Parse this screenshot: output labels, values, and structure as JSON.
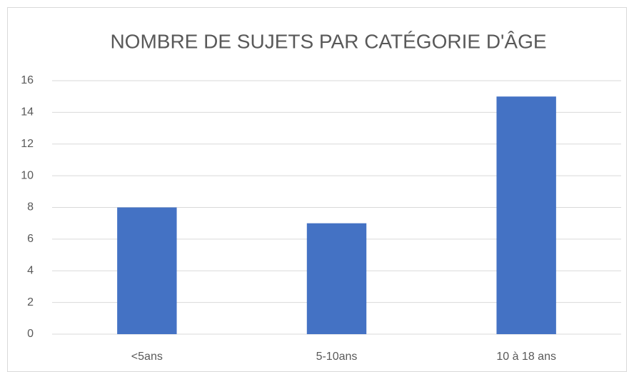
{
  "chart_data": {
    "type": "bar",
    "title": "NOMBRE DE SUJETS PAR CATÉGORIE D'ÂGE",
    "categories": [
      "<5ans",
      "5-10ans",
      "10 à 18 ans"
    ],
    "values": [
      8,
      7,
      15
    ],
    "color": "#4472c4",
    "ylim": [
      0,
      16
    ],
    "yticks": [
      0,
      2,
      4,
      6,
      8,
      10,
      12,
      14,
      16
    ],
    "grid": true
  }
}
